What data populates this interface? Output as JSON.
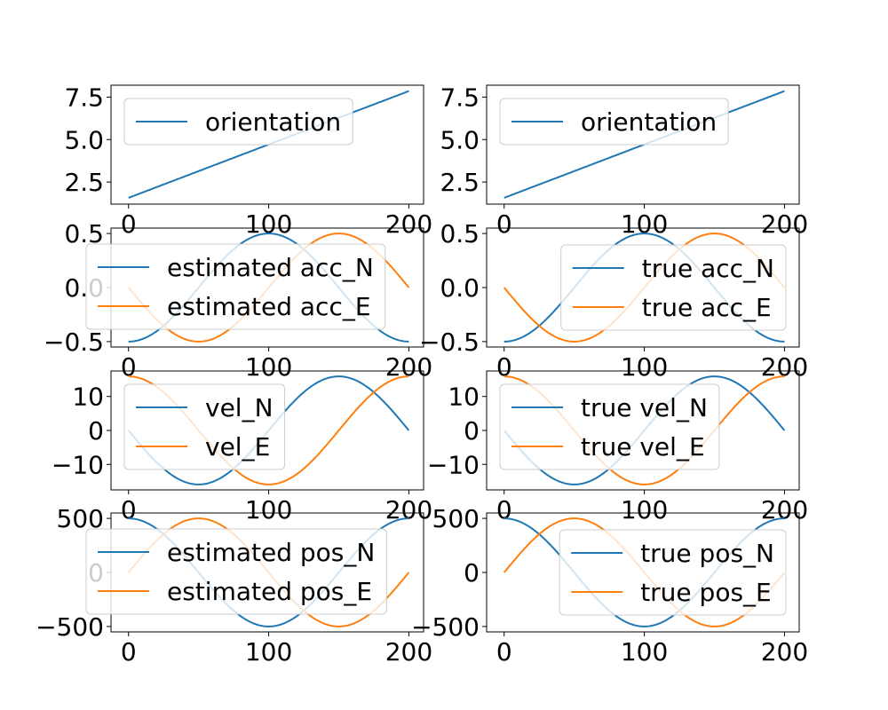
{
  "colors": {
    "series1": "#1f77b4",
    "series2": "#ff7f0e"
  },
  "chart_data": [
    {
      "type": "line",
      "xlim": [
        -12.5,
        210.5
      ],
      "ylim": [
        1.2,
        8.2
      ],
      "xticks": [
        0,
        100,
        200
      ],
      "xtick_labels": [
        "0",
        "100",
        "200"
      ],
      "yticks": [
        2.5,
        5.0,
        7.5
      ],
      "ytick_labels": [
        "2.5",
        "5.0",
        "7.5"
      ],
      "legend_position": "upper left",
      "series": [
        {
          "name": "orientation",
          "color": "#1f77b4",
          "func": "lin",
          "a": 1.5708,
          "b": 7.854
        }
      ]
    },
    {
      "type": "line",
      "xlim": [
        -12.5,
        210.5
      ],
      "ylim": [
        1.2,
        8.2
      ],
      "xticks": [
        0,
        100,
        200
      ],
      "xtick_labels": [
        "0",
        "100",
        "200"
      ],
      "yticks": [
        2.5,
        5.0,
        7.5
      ],
      "ytick_labels": [
        "2.5",
        "5.0",
        "7.5"
      ],
      "legend_position": "upper left",
      "series": [
        {
          "name": "orientation",
          "color": "#1f77b4",
          "func": "lin",
          "a": 1.5708,
          "b": 7.854
        }
      ]
    },
    {
      "type": "line",
      "xlim": [
        -12.5,
        210.5
      ],
      "ylim": [
        -0.55,
        0.55
      ],
      "xticks": [
        0,
        100,
        200
      ],
      "xtick_labels": [
        "0",
        "100",
        "200"
      ],
      "yticks": [
        -0.5,
        0.0,
        0.5
      ],
      "ytick_labels": [
        "−0.5",
        "0.0",
        "0.5"
      ],
      "legend_position": "center left",
      "series": [
        {
          "name": "estimated acc_N",
          "color": "#1f77b4",
          "func": "cos",
          "amp": -0.5
        },
        {
          "name": "estimated acc_E",
          "color": "#ff7f0e",
          "func": "sin",
          "amp": -0.5
        }
      ]
    },
    {
      "type": "line",
      "xlim": [
        -12.5,
        210.5
      ],
      "ylim": [
        -0.55,
        0.55
      ],
      "xticks": [
        0,
        100,
        200
      ],
      "xtick_labels": [
        "0",
        "100",
        "200"
      ],
      "yticks": [
        -0.5,
        0.0,
        0.5
      ],
      "ytick_labels": [
        "−0.5",
        "0.0",
        "0.5"
      ],
      "legend_position": "upper right",
      "series": [
        {
          "name": "true acc_N",
          "color": "#1f77b4",
          "func": "cos",
          "amp": -0.5
        },
        {
          "name": "true acc_E",
          "color": "#ff7f0e",
          "func": "sin",
          "amp": -0.5
        }
      ]
    },
    {
      "type": "line",
      "xlim": [
        -12.5,
        210.5
      ],
      "ylim": [
        -17.5,
        17.5
      ],
      "xticks": [
        0,
        100,
        200
      ],
      "xtick_labels": [
        "0",
        "100",
        "200"
      ],
      "yticks": [
        -10,
        0,
        10
      ],
      "ytick_labels": [
        "−10",
        "0",
        "10"
      ],
      "legend_position": "upper left",
      "series": [
        {
          "name": "vel_N",
          "color": "#1f77b4",
          "func": "sin",
          "amp": -15.9
        },
        {
          "name": "vel_E",
          "color": "#ff7f0e",
          "func": "cos",
          "amp": 15.9
        }
      ]
    },
    {
      "type": "line",
      "xlim": [
        -12.5,
        210.5
      ],
      "ylim": [
        -17.5,
        17.5
      ],
      "xticks": [
        0,
        100,
        200
      ],
      "xtick_labels": [
        "0",
        "100",
        "200"
      ],
      "yticks": [
        -10,
        0,
        10
      ],
      "ytick_labels": [
        "−10",
        "0",
        "10"
      ],
      "legend_position": "upper left",
      "series": [
        {
          "name": "true vel_N",
          "color": "#1f77b4",
          "func": "sin",
          "amp": -15.9
        },
        {
          "name": "true vel_E",
          "color": "#ff7f0e",
          "func": "cos",
          "amp": 15.9
        }
      ]
    },
    {
      "type": "line",
      "xlim": [
        -12.5,
        210.5
      ],
      "ylim": [
        -550,
        550
      ],
      "xticks": [
        0,
        100,
        200
      ],
      "xtick_labels": [
        "0",
        "100",
        "200"
      ],
      "yticks": [
        -500,
        0,
        500
      ],
      "ytick_labels": [
        "−500",
        "0",
        "500"
      ],
      "legend_position": "center",
      "series": [
        {
          "name": "estimated pos_N",
          "color": "#1f77b4",
          "func": "cos",
          "amp": 500
        },
        {
          "name": "estimated pos_E",
          "color": "#ff7f0e",
          "func": "sin",
          "amp": 500
        }
      ]
    },
    {
      "type": "line",
      "xlim": [
        -12.5,
        210.5
      ],
      "ylim": [
        -550,
        550
      ],
      "xticks": [
        0,
        100,
        200
      ],
      "xtick_labels": [
        "0",
        "100",
        "200"
      ],
      "yticks": [
        -500,
        0,
        500
      ],
      "ytick_labels": [
        "−500",
        "0",
        "500"
      ],
      "legend_position": "upper right",
      "series": [
        {
          "name": "true pos_N",
          "color": "#1f77b4",
          "func": "cos",
          "amp": 500
        },
        {
          "name": "true pos_E",
          "color": "#ff7f0e",
          "func": "sin",
          "amp": 500
        }
      ]
    }
  ]
}
